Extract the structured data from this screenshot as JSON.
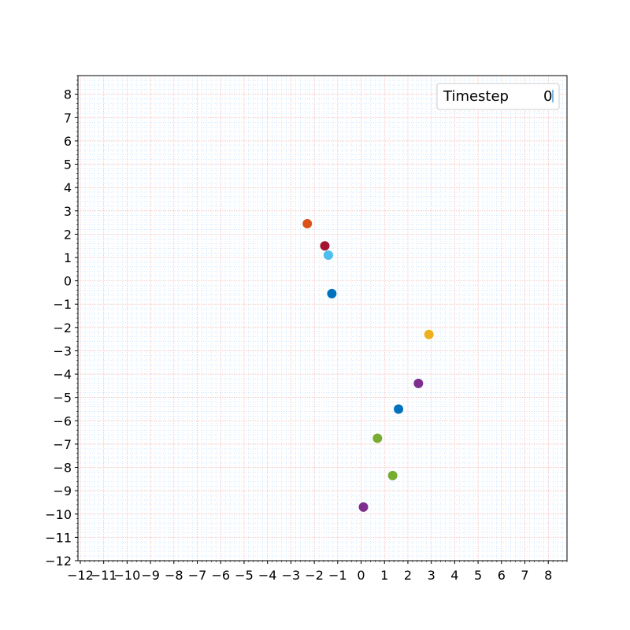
{
  "chart_data": {
    "type": "scatter",
    "title": "",
    "xlabel": "",
    "ylabel": "",
    "xlim": [
      -12.1,
      8.8
    ],
    "ylim": [
      -12.0,
      8.8
    ],
    "grid": true,
    "major_grid_color": "#f4a0a0",
    "minor_grid_color": "#a8d4ff",
    "x_ticks": [
      -12,
      -11,
      -10,
      -9,
      -8,
      -7,
      -6,
      -5,
      -4,
      -3,
      -2,
      -1,
      0,
      1,
      2,
      3,
      4,
      5,
      6,
      7,
      8
    ],
    "y_ticks": [
      -12,
      -11,
      -10,
      -9,
      -8,
      -7,
      -6,
      -5,
      -4,
      -3,
      -2,
      -1,
      0,
      1,
      2,
      3,
      4,
      5,
      6,
      7,
      8
    ],
    "legend": {
      "placement": "top-right",
      "label": "Timestep",
      "value": "0"
    },
    "points": [
      {
        "x": -2.3,
        "y": 2.45,
        "color": "#d95319"
      },
      {
        "x": -1.55,
        "y": 1.5,
        "color": "#a2142f"
      },
      {
        "x": -1.4,
        "y": 1.1,
        "color": "#4dbeee"
      },
      {
        "x": -1.25,
        "y": -0.55,
        "color": "#0072bd"
      },
      {
        "x": 2.9,
        "y": -2.3,
        "color": "#edb120"
      },
      {
        "x": 2.45,
        "y": -4.4,
        "color": "#7e2f8e"
      },
      {
        "x": 1.6,
        "y": -5.5,
        "color": "#0072bd"
      },
      {
        "x": 0.7,
        "y": -6.75,
        "color": "#77ac30"
      },
      {
        "x": 1.35,
        "y": -8.35,
        "color": "#77ac30"
      },
      {
        "x": 0.1,
        "y": -9.7,
        "color": "#7e2f8e"
      }
    ]
  }
}
